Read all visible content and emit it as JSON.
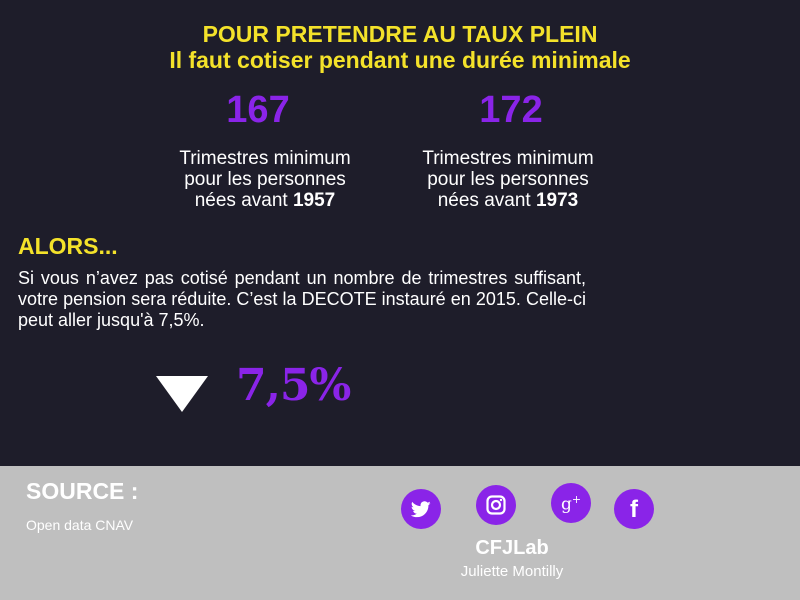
{
  "header": {
    "title_line1": "POUR PRETENDRE AU TAUX PLEIN",
    "title_line2": "Il faut cotiser pendant une durée minimale"
  },
  "stats": [
    {
      "number": "167",
      "line1": "Trimestres minimum",
      "line2": "pour les personnes",
      "line3_prefix": "nées avant ",
      "year": "1957"
    },
    {
      "number": "172",
      "line1": "Trimestres minimum",
      "line2": "pour les personnes",
      "line3_prefix": "nées avant ",
      "year": "1973"
    }
  ],
  "body": {
    "alors": "ALORS...",
    "paragraph": "Si vous n’avez pas cotisé pendant un nombre de trimestres suffisant, votre pension sera réduite. C’est la DECOTE instauré en 2015. Celle-ci peut aller jusqu'à 7,5%.",
    "highlight_value": "7,5%",
    "arrow_icon": "triangle-down-icon"
  },
  "footer": {
    "source_label": "SOURCE :",
    "source_text": "Open data CNAV",
    "social_icons": [
      "twitter-icon",
      "instagram-icon",
      "google-plus-icon",
      "facebook-icon"
    ],
    "gplus_glyph": "g",
    "gplus_plus": "+",
    "facebook_glyph": "f",
    "brand": "CFJLab",
    "author": "Juliette Montilly"
  },
  "colors": {
    "background": "#1e1d2a",
    "accent_yellow": "#f4e22a",
    "accent_purple": "#8a24e8",
    "footer_background": "#bfbfbf"
  }
}
